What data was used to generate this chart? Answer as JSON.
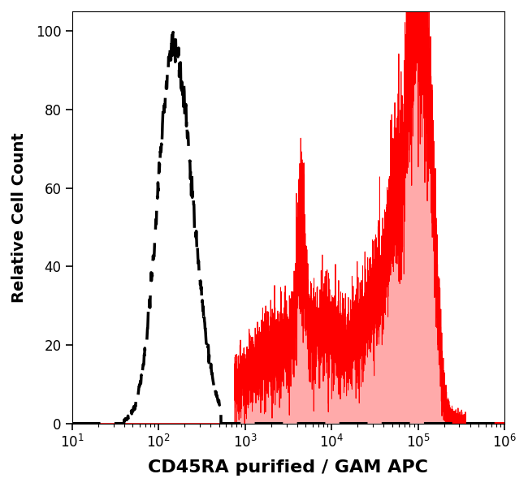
{
  "title": "",
  "xlabel": "CD45RA purified / GAM APC",
  "ylabel": "Relative Cell Count",
  "xlim_log": [
    1,
    6
  ],
  "ylim": [
    0,
    105
  ],
  "yticks": [
    0,
    20,
    40,
    60,
    80,
    100
  ],
  "background_color": "#ffffff",
  "dashed_color": "#000000",
  "red_fill_color": "#ffaaaa",
  "red_line_color": "#ff0000",
  "xlabel_fontsize": 16,
  "ylabel_fontsize": 14,
  "tick_fontsize": 12
}
